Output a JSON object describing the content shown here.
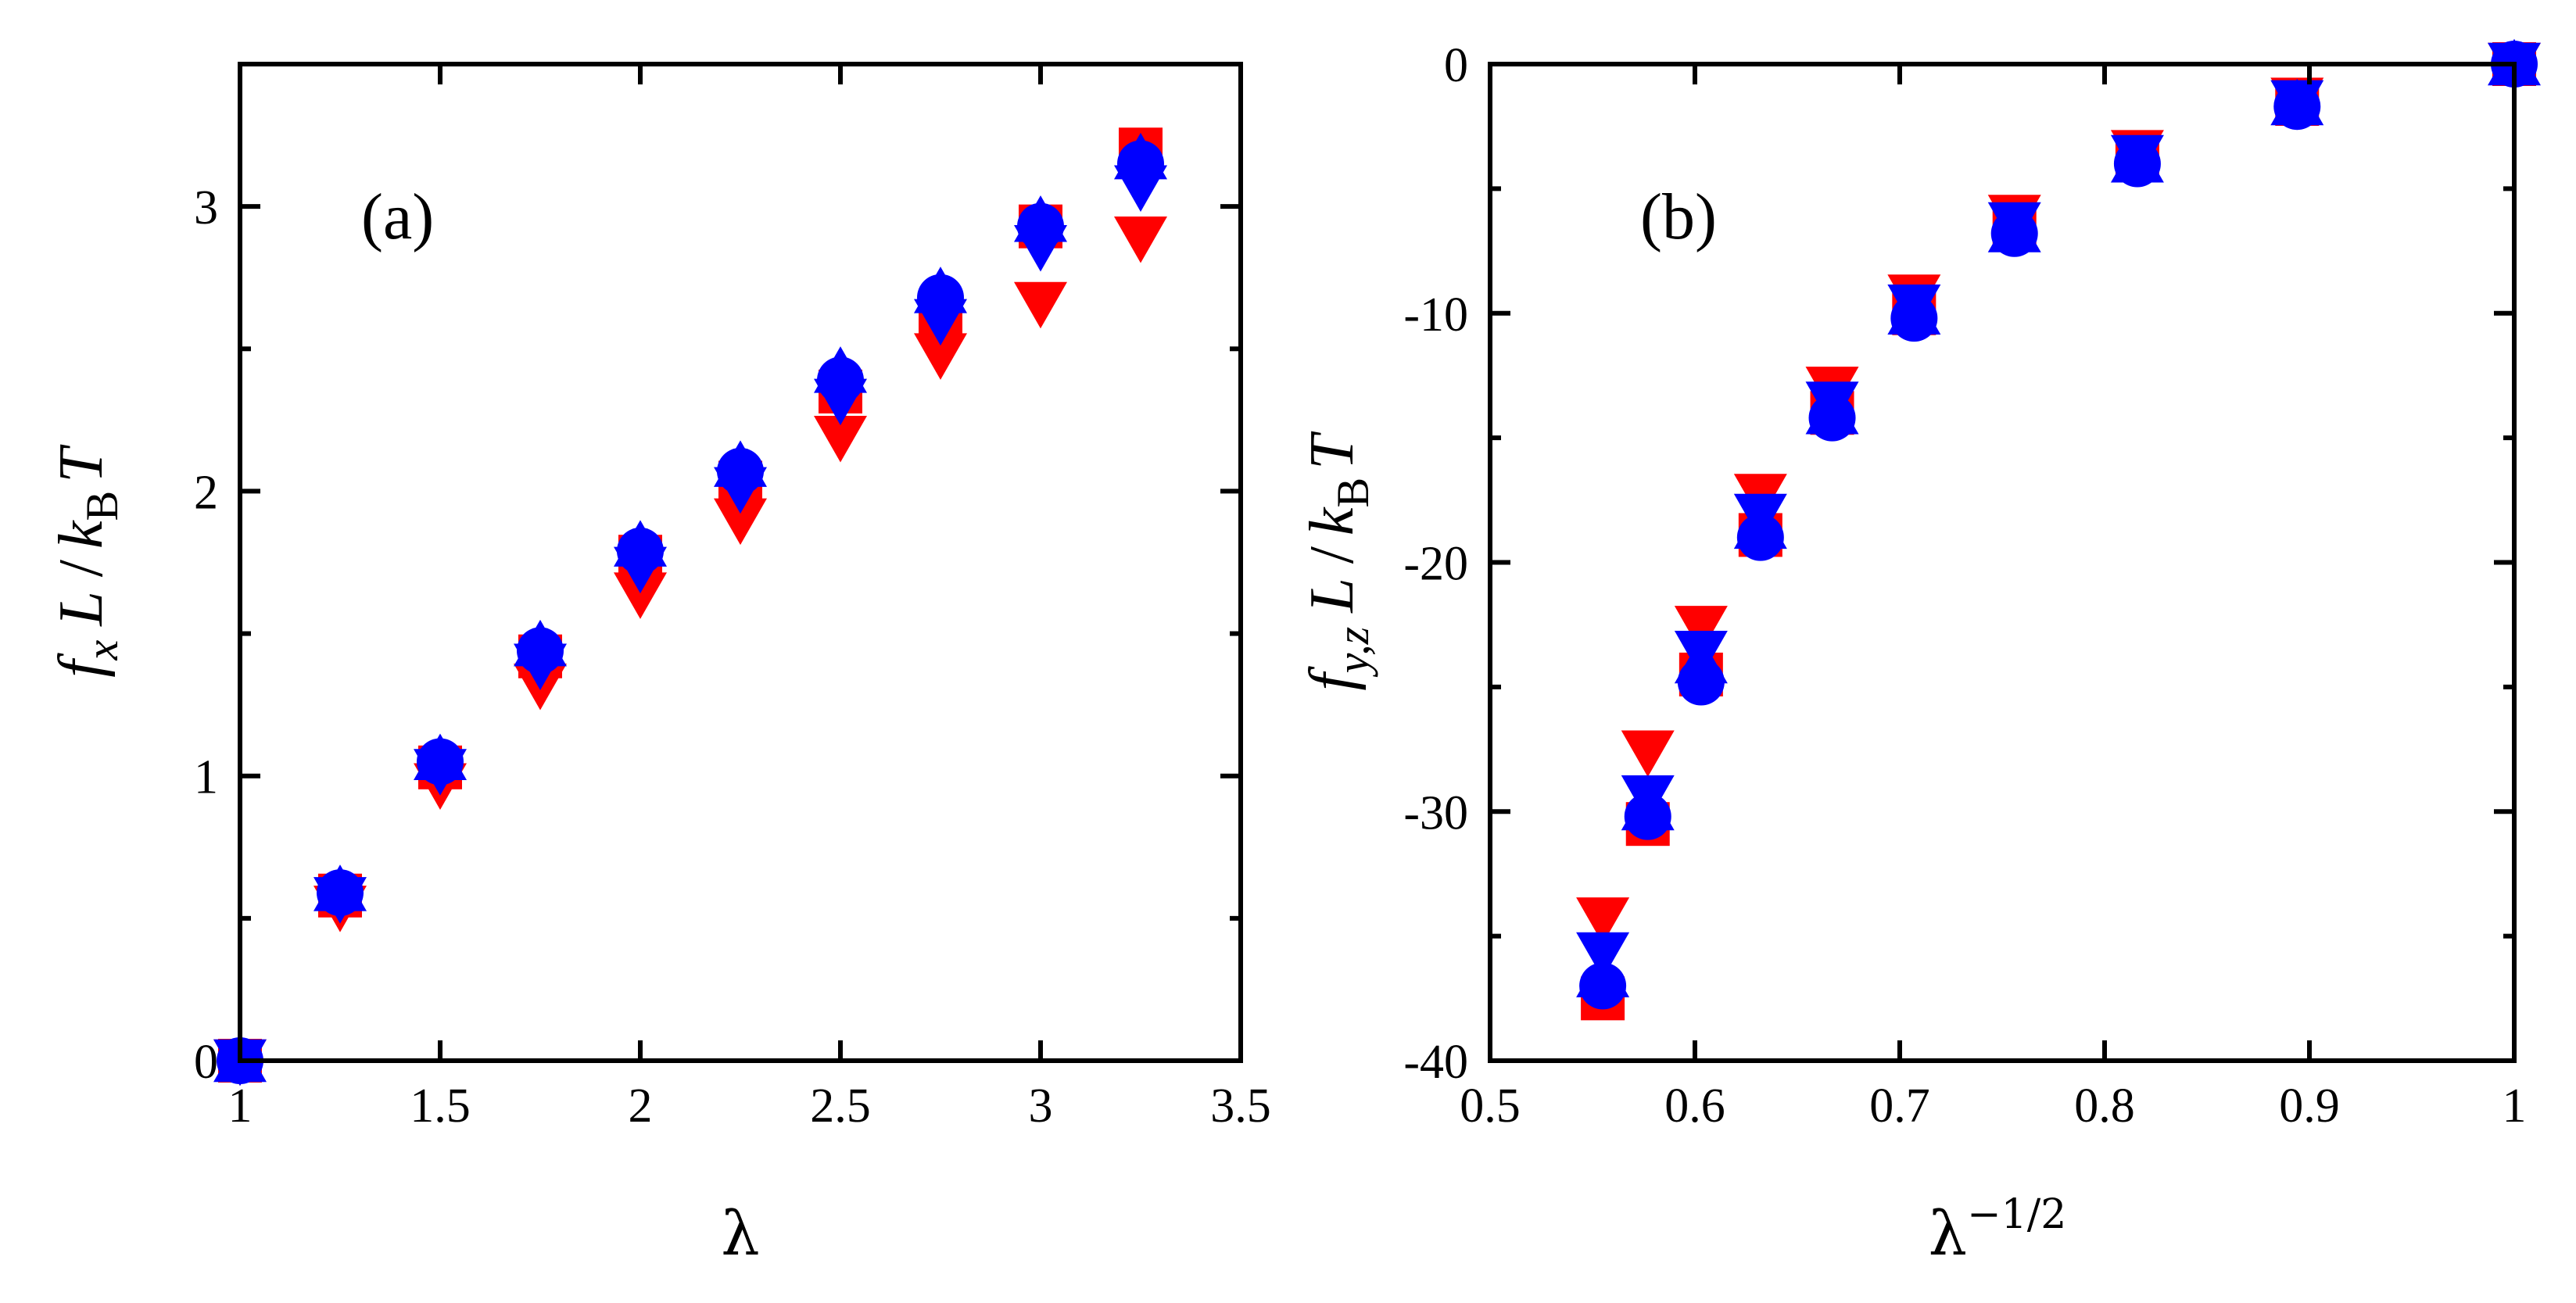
{
  "chart_data": [
    {
      "type": "scatter",
      "panel_label": "(a)",
      "xlabel": "λ",
      "ylabel": {
        "f": "f",
        "sub1": "x",
        "L": "L",
        "slash": "/",
        "k": "k",
        "sub2": "B",
        "T": "T"
      },
      "xlim": [
        1,
        3.5
      ],
      "ylim": [
        0,
        3.5
      ],
      "xticks": [
        1,
        1.5,
        2,
        2.5,
        3,
        3.5
      ],
      "xtick_labels": [
        "1",
        "1.5",
        "2",
        "2.5",
        "3",
        "3.5"
      ],
      "yticks": [
        0,
        1,
        2,
        3
      ],
      "ytick_labels": [
        "0",
        "1",
        "2",
        "3"
      ],
      "series": [
        {
          "name": "red squares",
          "marker": "square",
          "color": "#ff0000",
          "x": [
            1,
            1.25,
            1.5,
            1.75,
            2,
            2.25,
            2.5,
            2.75,
            3,
            3.25
          ],
          "y": [
            0,
            0.58,
            1.03,
            1.42,
            1.77,
            2.03,
            2.35,
            2.63,
            2.93,
            3.2
          ]
        },
        {
          "name": "red triangles down",
          "marker": "triangle-down",
          "color": "#ff0000",
          "x": [
            1,
            1.25,
            1.5,
            1.75,
            2,
            2.25,
            2.5,
            2.75,
            3,
            3.25
          ],
          "y": [
            0,
            0.54,
            0.97,
            1.32,
            1.64,
            1.9,
            2.19,
            2.48,
            2.66,
            2.89
          ]
        },
        {
          "name": "blue circles",
          "marker": "circle",
          "color": "#0000ff",
          "x": [
            1,
            1.25,
            1.5,
            1.75,
            2,
            2.25,
            2.5,
            2.75,
            3,
            3.25
          ],
          "y": [
            0,
            0.59,
            1.05,
            1.44,
            1.79,
            2.07,
            2.39,
            2.68,
            2.93,
            3.15
          ]
        },
        {
          "name": "blue triangles down",
          "marker": "triangle-down",
          "color": "#0000ff",
          "x": [
            1,
            1.25,
            1.5,
            1.75,
            2,
            2.25,
            2.5,
            2.75,
            3,
            3.25
          ],
          "y": [
            0,
            0.57,
            1.02,
            1.39,
            1.73,
            2.01,
            2.32,
            2.6,
            2.86,
            3.07
          ]
        },
        {
          "name": "blue triangles up",
          "marker": "triangle-up",
          "color": "#0000ff",
          "x": [
            1,
            1.25,
            1.5,
            1.75,
            2,
            2.25,
            2.5,
            2.75,
            3,
            3.25
          ],
          "y": [
            0,
            0.6,
            1.06,
            1.46,
            1.81,
            2.09,
            2.42,
            2.7,
            2.95,
            3.17
          ]
        }
      ]
    },
    {
      "type": "scatter",
      "panel_label": "(b)",
      "xlabel": {
        "base": "λ",
        "exp": "−1/2"
      },
      "ylabel": {
        "f": "f",
        "sub1": "y,z",
        "L": "L",
        "slash": "/",
        "k": "k",
        "sub2": "B",
        "T": "T"
      },
      "xlim": [
        0.5,
        1
      ],
      "ylim": [
        -40,
        0
      ],
      "xticks": [
        0.5,
        0.6,
        0.7,
        0.8,
        0.9,
        1
      ],
      "xtick_labels": [
        "0.5",
        "0.6",
        "0.7",
        "0.8",
        "0.9",
        "1"
      ],
      "yticks": [
        -40,
        -30,
        -20,
        -10,
        0
      ],
      "ytick_labels": [
        "-40",
        "-30",
        "-20",
        "-10",
        "0"
      ],
      "series": [
        {
          "name": "red squares",
          "marker": "square",
          "color": "#ff0000",
          "x": [
            1,
            0.894,
            0.816,
            0.756,
            0.707,
            0.667,
            0.632,
            0.603,
            0.577,
            0.555
          ],
          "y": [
            0,
            -1.6,
            -3.8,
            -6.6,
            -10,
            -14,
            -18.9,
            -24.5,
            -30.5,
            -37.5
          ]
        },
        {
          "name": "red triangles down",
          "marker": "triangle-down",
          "color": "#ff0000",
          "x": [
            1,
            0.894,
            0.816,
            0.756,
            0.707,
            0.667,
            0.632,
            0.603,
            0.577,
            0.555
          ],
          "y": [
            0,
            -1.4,
            -3.5,
            -6.1,
            -9.3,
            -13,
            -17.3,
            -22.6,
            -27.6,
            -34.3
          ]
        },
        {
          "name": "blue circles",
          "marker": "circle",
          "color": "#0000ff",
          "x": [
            1,
            0.894,
            0.816,
            0.756,
            0.707,
            0.667,
            0.632,
            0.603,
            0.577,
            0.555
          ],
          "y": [
            0,
            -1.7,
            -4,
            -6.8,
            -10.2,
            -14.2,
            -19,
            -24.8,
            -30.2,
            -37
          ]
        },
        {
          "name": "blue triangles down",
          "marker": "triangle-down",
          "color": "#0000ff",
          "x": [
            1,
            0.894,
            0.816,
            0.756,
            0.707,
            0.667,
            0.632,
            0.603,
            0.577,
            0.555
          ],
          "y": [
            0,
            -1.5,
            -3.7,
            -6.4,
            -9.7,
            -13.6,
            -18.1,
            -23.6,
            -29.4,
            -35.7
          ]
        },
        {
          "name": "blue triangles up",
          "marker": "triangle-up",
          "color": "#0000ff",
          "x": [
            1,
            0.894,
            0.816,
            0.756,
            0.707,
            0.667,
            0.632,
            0.603,
            0.577,
            0.555
          ],
          "y": [
            0,
            -1.6,
            -3.9,
            -6.7,
            -10,
            -14,
            -18.6,
            -24,
            -29.9,
            -36.6
          ]
        }
      ]
    }
  ]
}
